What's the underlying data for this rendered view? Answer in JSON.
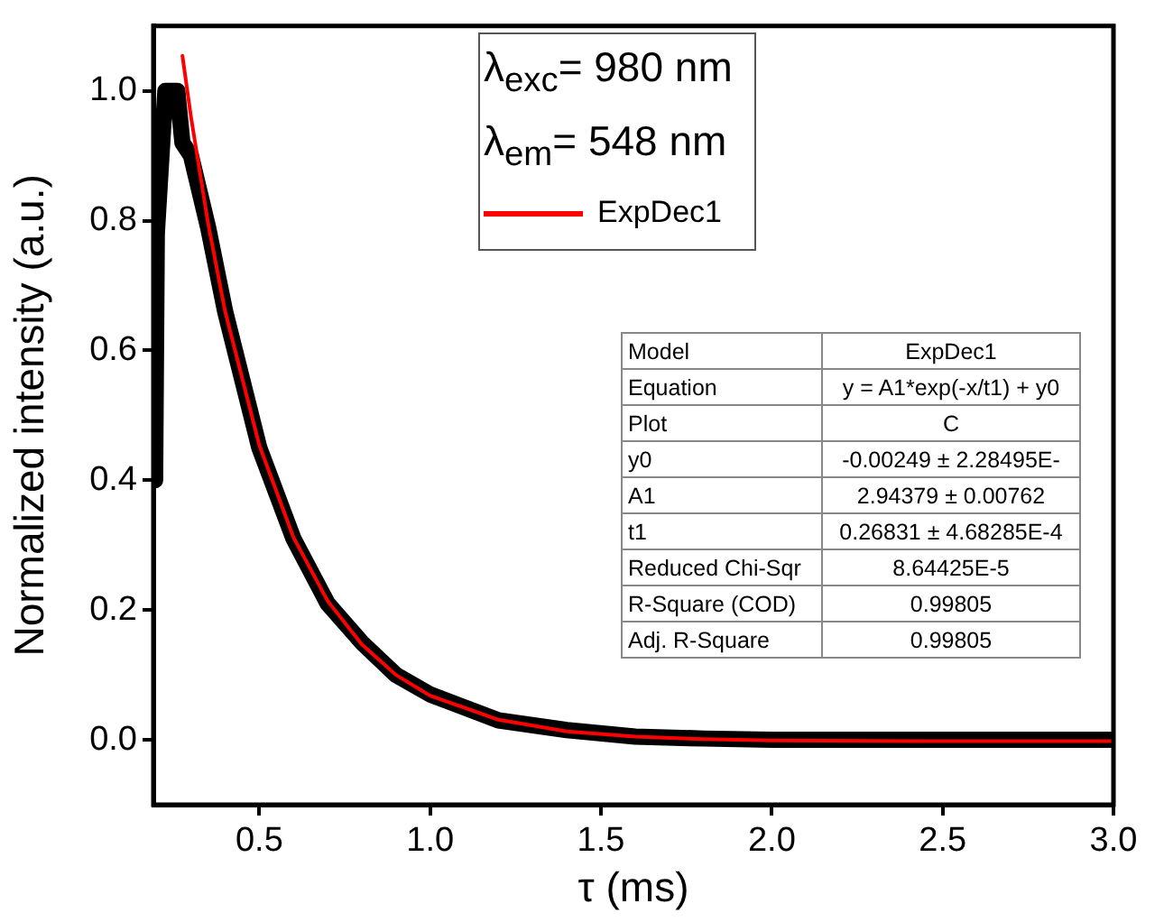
{
  "chart_data": {
    "type": "line",
    "xlabel": "τ (ms)",
    "ylabel": "Normalized intensity (a.u.)",
    "legend_title": "λ$_{exc}$= 980 nm\nλ$_{em}$= 548 nm",
    "legend": "top",
    "grid": false,
    "marker": "none",
    "line_style": "solid",
    "xlim": [
      0.19,
      3.0
    ],
    "xticks": [
      {
        "value": 0.5,
        "label": "0.5"
      },
      {
        "value": 1,
        "label": "1.0"
      },
      {
        "value": 1.5,
        "label": "1.5"
      },
      {
        "value": 2,
        "label": "2.0"
      },
      {
        "value": 2.5,
        "label": "2.5"
      },
      {
        "value": 3,
        "label": "3.0"
      }
    ],
    "ylim": [
      -0.1,
      1.1
    ],
    "yticks": [
      {
        "value": 0,
        "label": "0.0"
      },
      {
        "value": 0.2,
        "label": "0.2"
      },
      {
        "value": 0.4,
        "label": "0.4"
      },
      {
        "value": 0.6,
        "label": "0.6"
      },
      {
        "value": 0.8,
        "label": "0.8"
      },
      {
        "value": 1,
        "label": "1.0"
      }
    ],
    "series": [
      {
        "color": "#000000",
        "x": [
          0.195,
          0.2,
          0.225,
          0.26,
          0.275,
          0.3,
          0.35,
          0.4,
          0.5,
          0.6,
          0.7,
          0.8,
          0.9,
          1.0,
          1.2,
          1.4,
          1.6,
          1.8,
          2.0,
          2.5,
          3.0
        ],
        "values": [
          0.4,
          0.78,
          1.0,
          1.0,
          0.92,
          0.9,
          0.79,
          0.66,
          0.45,
          0.31,
          0.21,
          0.15,
          0.1,
          0.07,
          0.03,
          0.015,
          0.005,
          0.002,
          0.0,
          0.0,
          0.0
        ]
      },
      {
        "name": "ExpDec1",
        "color": "#ff0000",
        "x": [
          0.275,
          0.3,
          0.35,
          0.4,
          0.5,
          0.6,
          0.7,
          0.8,
          0.9,
          1.0,
          1.2,
          1.4,
          1.6,
          1.8,
          2.0,
          2.5,
          3.0
        ],
        "values": [
          1.054,
          0.96,
          0.796,
          0.66,
          0.454,
          0.312,
          0.214,
          0.147,
          0.1,
          0.068,
          0.031,
          0.013,
          0.005,
          0.001,
          -0.001,
          -0.002,
          -0.002
        ]
      }
    ],
    "annotations": [
      "Model",
      "ExpDec1",
      "Equation",
      "y = A1*exp(-x/t1) + y0",
      "Plot",
      "C",
      "y0",
      "-0.00249 ± 2.28495E-",
      "A1",
      "2.94379 ± 0.00762",
      "t1",
      "0.26831 ± 4.68285E-4",
      "Reduced Chi-Sqr",
      "8.64425E-5",
      "R-Square (COD)",
      "0.99805",
      "Adj. R-Square",
      "0.99805"
    ]
  }
}
